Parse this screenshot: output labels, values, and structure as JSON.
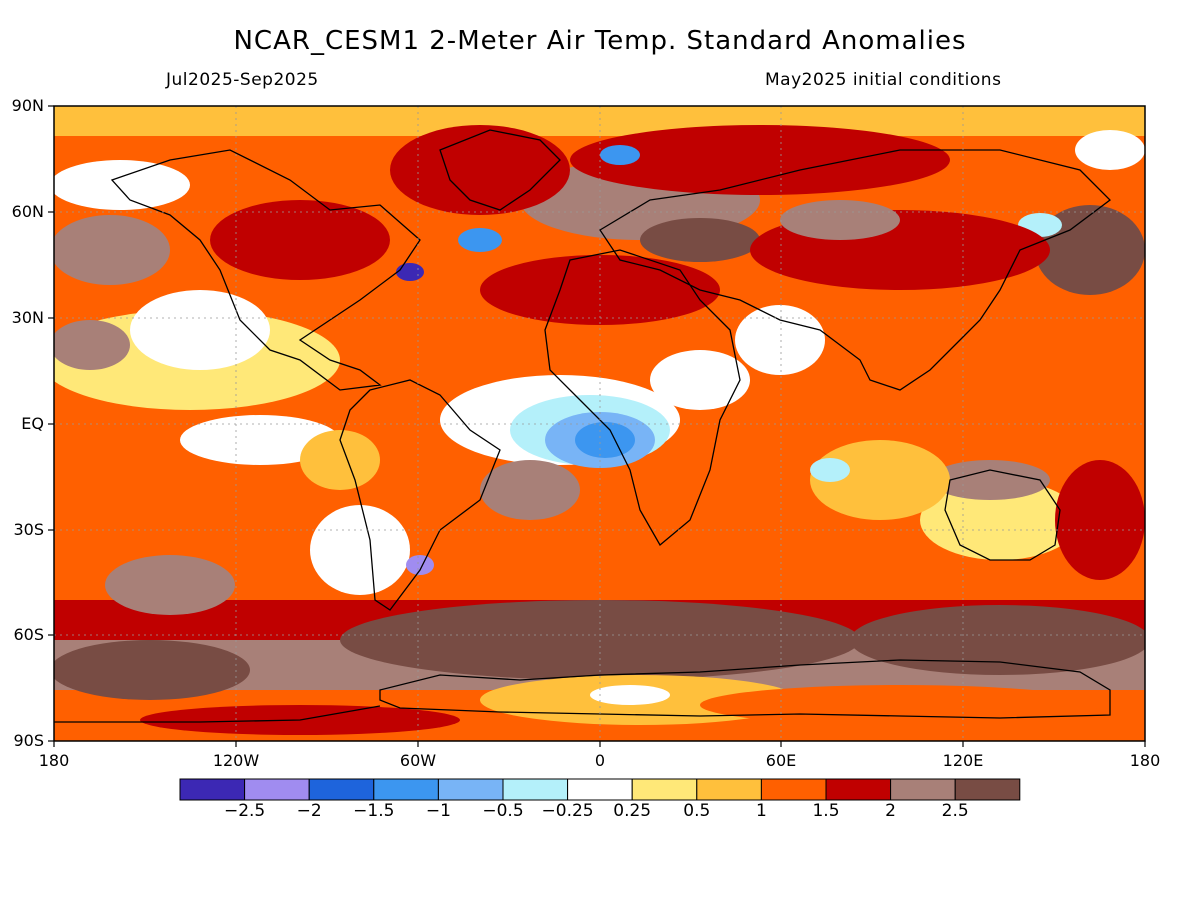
{
  "title": "NCAR_CESM1 2-Meter Air Temp. Standard Anomalies",
  "subtitle_left": "Jul2025-Sep2025",
  "subtitle_right": "May2025 initial conditions",
  "lat_labels": [
    "90N",
    "60N",
    "30N",
    "EQ",
    "30S",
    "60S",
    "90S"
  ],
  "lon_labels": [
    "180",
    "120W",
    "60W",
    "0",
    "60E",
    "120E",
    "180"
  ],
  "colorbar": {
    "colors": [
      "#3c28b4",
      "#a08cf0",
      "#1e64dc",
      "#3c96f0",
      "#78b4f6",
      "#b4f0fa",
      "#ffffff",
      "#ffe878",
      "#ffc03c",
      "#ff6000",
      "#c00000",
      "#a88078",
      "#784c44"
    ],
    "labels": [
      "−2.5",
      "−2",
      "−1.5",
      "−1",
      "−0.5",
      "−0.25",
      "0.25",
      "0.5",
      "1",
      "1.5",
      "2",
      "2.5"
    ]
  }
}
